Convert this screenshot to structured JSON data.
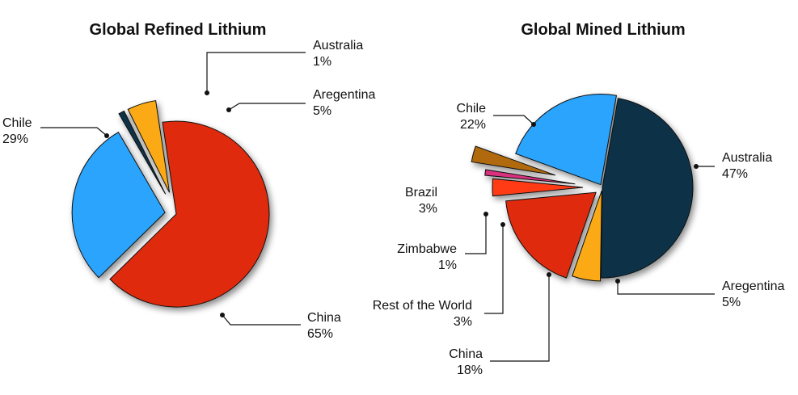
{
  "chart_data": [
    {
      "type": "pie",
      "title": "Global Refined Lithium",
      "slices": [
        {
          "label": "China",
          "value": 65,
          "value_label": "65%",
          "color": "#e02a0a"
        },
        {
          "label": "Chile",
          "value": 29,
          "value_label": "29%",
          "color": "#2ca4fd"
        },
        {
          "label": "Australia",
          "value": 1,
          "value_label": "1%",
          "color": "#0b3047"
        },
        {
          "label": "Aregentina",
          "value": 5,
          "value_label": "5%",
          "color": "#fbaa12"
        }
      ]
    },
    {
      "type": "pie",
      "title": "Global Mined Lithium",
      "slices": [
        {
          "label": "Australia",
          "value": 47,
          "value_label": "47%",
          "color": "#0b3047"
        },
        {
          "label": "Aregentina",
          "value": 5,
          "value_label": "5%",
          "color": "#fbaa12"
        },
        {
          "label": "China",
          "value": 18,
          "value_label": "18%",
          "color": "#e02a0a"
        },
        {
          "label": "Rest of the World",
          "value": 3,
          "value_label": "3%",
          "color": "#ff3b17"
        },
        {
          "label": "Zimbabwe",
          "value": 1,
          "value_label": "1%",
          "color": "#d8307e"
        },
        {
          "label": "Brazil",
          "value": 3,
          "value_label": "3%",
          "color": "#b06a0e"
        },
        {
          "label": "Chile",
          "value": 22,
          "value_label": "22%",
          "color": "#2ca4fd"
        }
      ]
    }
  ]
}
